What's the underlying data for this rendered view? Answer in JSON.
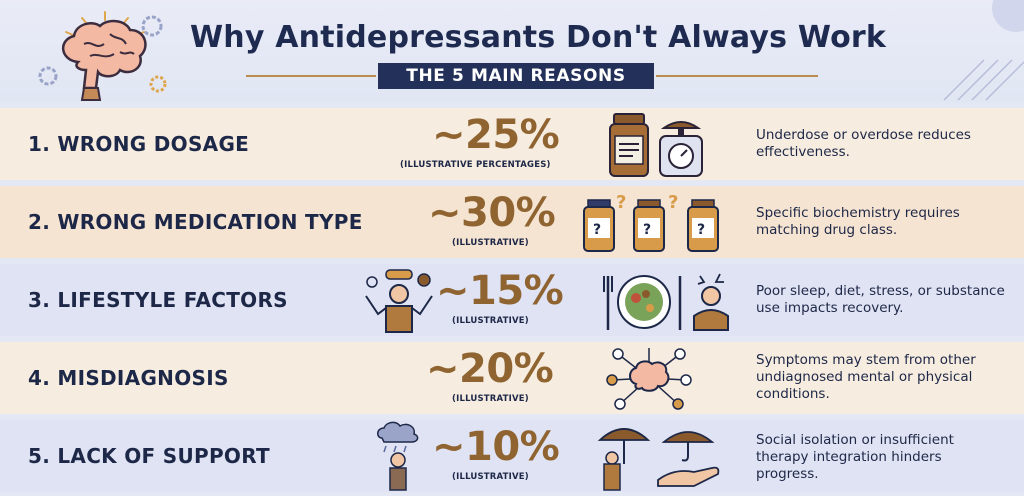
{
  "header": {
    "title": "Why Antidepressants Don't Always Work",
    "subtitle": "THE 5 MAIN REASONS"
  },
  "rows": [
    {
      "label": "1. WRONG DOSAGE",
      "percent": "~25%",
      "note": "(ILLUSTRATIVE PERCENTAGES)",
      "description": "Underdose or overdose reduces effectiveness.",
      "icons": [
        "pill-bottle-icon",
        "scale-icon"
      ]
    },
    {
      "label": "2. WRONG MEDICATION TYPE",
      "percent": "~30%",
      "note": "(ILLUSTRATIVE)",
      "description": "Specific biochemistry requires matching drug class.",
      "icons": [
        "question-bottles-icon"
      ]
    },
    {
      "label": "3. LIFESTYLE FACTORS",
      "percent": "~15%",
      "note": "(ILLUSTRATIVE)",
      "description": "Poor sleep, diet, stress, or substance use impacts recovery.",
      "icons": [
        "tired-person-icon",
        "food-plate-icon",
        "stressed-person-icon"
      ]
    },
    {
      "label": "4. MISDIAGNOSIS",
      "percent": "~20%",
      "note": "(ILLUSTRATIVE)",
      "description": "Symptoms may stem from other undiagnosed mental or physical conditions.",
      "icons": [
        "brain-network-icon"
      ]
    },
    {
      "label": "5. LACK OF SUPPORT",
      "percent": "~10%",
      "note": "(ILLUSTRATIVE)",
      "description": "Social isolation or insufficient therapy integration hinders progress.",
      "icons": [
        "rain-cloud-person-icon",
        "umbrella-support-icon"
      ]
    }
  ],
  "colors": {
    "navy": "#1d2747",
    "accent": "#8f6431",
    "band_peach": "#f7eadb",
    "band_lavender": "#dfe3f3"
  }
}
